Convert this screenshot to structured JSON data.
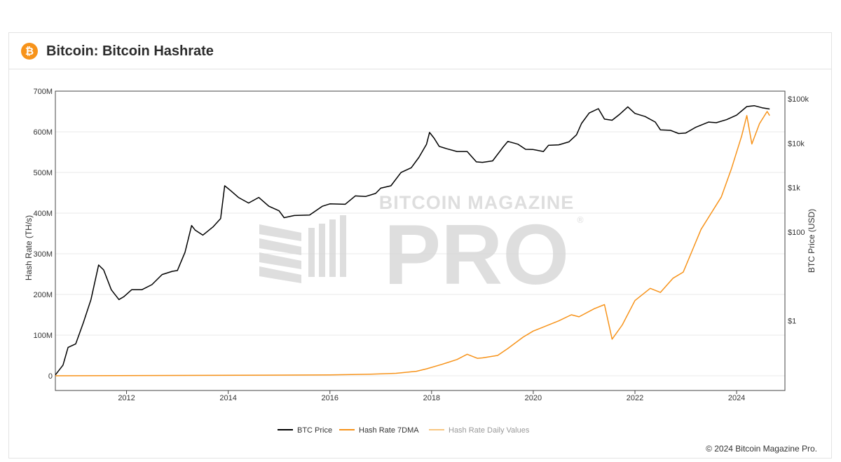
{
  "header": {
    "logo_glyph": "₿",
    "title": "Bitcoin: Bitcoin Hashrate"
  },
  "watermark": {
    "top_line": "BITCOIN MAGAZINE",
    "big_line": "PRO",
    "mark": "®"
  },
  "footer": {
    "copyright": "© 2024 Bitcoin Magazine Pro."
  },
  "chart_data": {
    "type": "line",
    "xlim": [
      2010.6,
      2024.95
    ],
    "x_ticks": [
      "2012",
      "2014",
      "2016",
      "2018",
      "2020",
      "2022",
      "2024"
    ],
    "x_tick_values": [
      2012,
      2014,
      2016,
      2018,
      2020,
      2022,
      2024
    ],
    "y_left": {
      "label": "Hash Rate (TH/s)",
      "range": [
        0,
        700000000
      ],
      "ticks": [
        0,
        100000000,
        200000000,
        300000000,
        400000000,
        500000000,
        600000000,
        700000000
      ],
      "tick_labels": [
        "0",
        "100M",
        "200M",
        "300M",
        "400M",
        "500M",
        "600M",
        "700M"
      ]
    },
    "y_right": {
      "label": "BTC Price (USD)",
      "scale": "log",
      "tick_values": [
        1,
        100,
        1000,
        10000,
        100000
      ],
      "tick_labels": [
        "$1",
        "$100",
        "$1k",
        "$10k",
        "$100k"
      ]
    },
    "grid": true,
    "legend_position": "bottom",
    "colors": {
      "btc": "#000000",
      "hash7": "#f7931a",
      "hashDaily": "#f8c781",
      "grid": "#e8e8e8",
      "watermark": "#d9d9d9"
    },
    "series": [
      {
        "name": "BTC Price",
        "axis": "right",
        "color": "#000000",
        "x": [
          2010.6,
          2010.75,
          2010.85,
          2011.0,
          2011.15,
          2011.3,
          2011.45,
          2011.55,
          2011.7,
          2011.85,
          2011.95,
          2012.1,
          2012.3,
          2012.5,
          2012.7,
          2012.9,
          2013.0,
          2013.15,
          2013.28,
          2013.35,
          2013.5,
          2013.7,
          2013.85,
          2013.93,
          2014.05,
          2014.2,
          2014.4,
          2014.6,
          2014.8,
          2015.0,
          2015.1,
          2015.3,
          2015.6,
          2015.85,
          2016.0,
          2016.3,
          2016.5,
          2016.7,
          2016.9,
          2017.0,
          2017.2,
          2017.4,
          2017.6,
          2017.75,
          2017.9,
          2017.96,
          2018.05,
          2018.15,
          2018.3,
          2018.5,
          2018.7,
          2018.88,
          2019.0,
          2019.2,
          2019.4,
          2019.5,
          2019.7,
          2019.85,
          2020.0,
          2020.2,
          2020.3,
          2020.5,
          2020.7,
          2020.85,
          2020.95,
          2021.1,
          2021.28,
          2021.4,
          2021.55,
          2021.7,
          2021.86,
          2022.0,
          2022.2,
          2022.4,
          2022.5,
          2022.7,
          2022.86,
          2023.0,
          2023.2,
          2023.45,
          2023.6,
          2023.8,
          2024.0,
          2024.2,
          2024.35,
          2024.5,
          2024.65
        ],
        "y": [
          0.06,
          0.1,
          0.25,
          0.3,
          0.9,
          3,
          18,
          14,
          5,
          3,
          3.5,
          5,
          5,
          6.5,
          11,
          13,
          13.5,
          35,
          140,
          110,
          85,
          130,
          200,
          1100,
          850,
          600,
          450,
          600,
          380,
          300,
          210,
          235,
          240,
          380,
          430,
          420,
          650,
          630,
          740,
          970,
          1100,
          2200,
          2800,
          4800,
          9500,
          17500,
          13000,
          8500,
          7500,
          6500,
          6500,
          3800,
          3700,
          4000,
          8000,
          11000,
          9500,
          7300,
          7200,
          6500,
          9000,
          9200,
          10700,
          15500,
          28000,
          48000,
          60000,
          35000,
          33000,
          45000,
          66000,
          47000,
          40000,
          30000,
          20000,
          19500,
          16500,
          17000,
          23000,
          30000,
          29000,
          34000,
          43000,
          67000,
          70000,
          63000,
          59000
        ]
      },
      {
        "name": "Hash Rate 7DMA",
        "axis": "left",
        "color": "#f7931a",
        "x": [
          2010.6,
          2016.0,
          2016.8,
          2017.3,
          2017.7,
          2017.9,
          2018.2,
          2018.5,
          2018.7,
          2018.9,
          2019.0,
          2019.3,
          2019.5,
          2019.8,
          2020.0,
          2020.2,
          2020.5,
          2020.75,
          2020.9,
          2021.2,
          2021.4,
          2021.55,
          2021.75,
          2022.0,
          2022.3,
          2022.5,
          2022.75,
          2022.95,
          2023.1,
          2023.3,
          2023.5,
          2023.7,
          2023.9,
          2024.1,
          2024.2,
          2024.3,
          2024.45,
          2024.6,
          2024.65
        ],
        "y": [
          0,
          2000000,
          4000000,
          6000000,
          11000000,
          17000000,
          28000000,
          40000000,
          53000000,
          43000000,
          44000000,
          50000000,
          67000000,
          95000000,
          110000000,
          120000000,
          135000000,
          150000000,
          145000000,
          165000000,
          175000000,
          90000000,
          125000000,
          185000000,
          215000000,
          205000000,
          240000000,
          255000000,
          300000000,
          360000000,
          400000000,
          440000000,
          510000000,
          590000000,
          640000000,
          570000000,
          620000000,
          650000000,
          640000000
        ]
      },
      {
        "name": "Hash Rate Daily Values",
        "axis": "left",
        "color": "#f8c781",
        "x": [],
        "y": []
      }
    ]
  }
}
